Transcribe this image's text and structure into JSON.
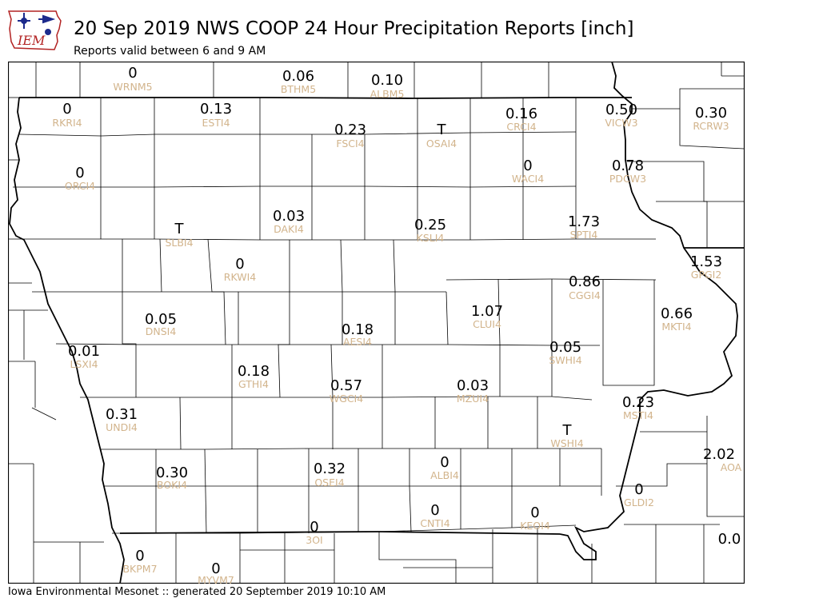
{
  "title": "20 Sep 2019 NWS COOP 24 Hour Precipitation Reports [inch]",
  "subtitle": "Reports valid between 6 and 9 AM",
  "footer": "Iowa Environmental Mesonet :: generated 20 September 2019 10:10 AM",
  "logo_text": "IEM",
  "colors": {
    "value": "#000000",
    "station_id": "#d2b48c",
    "county_lines": "#000000",
    "logo_red": "#b22222",
    "logo_blue": "#1c2a8c"
  },
  "stations": [
    {
      "value": "0",
      "id": "WRNM5"
    },
    {
      "value": "0.06",
      "id": "BTHM5"
    },
    {
      "value": "0.10",
      "id": "ALBM5"
    },
    {
      "value": "0",
      "id": "RKRI4"
    },
    {
      "value": "0.13",
      "id": "ESTI4"
    },
    {
      "value": "0.23",
      "id": "FSCI4"
    },
    {
      "value": "T",
      "id": "OSAI4"
    },
    {
      "value": "0.16",
      "id": "CRCI4"
    },
    {
      "value": "0.50",
      "id": "VICW3"
    },
    {
      "value": "0.30",
      "id": "RCRW3"
    },
    {
      "value": "0",
      "id": "ORCI4"
    },
    {
      "value": "0",
      "id": "WACI4"
    },
    {
      "value": "0.78",
      "id": "PDCW3"
    },
    {
      "value": "T",
      "id": "SLBI4"
    },
    {
      "value": "0.03",
      "id": "DAKI4"
    },
    {
      "value": "0.25",
      "id": "KSLI4"
    },
    {
      "value": "1.73",
      "id": "SPTI4"
    },
    {
      "value": "0",
      "id": "RKWI4"
    },
    {
      "value": "1.53",
      "id": "GPGI2"
    },
    {
      "value": "0.86",
      "id": "CGGI4"
    },
    {
      "value": "1.07",
      "id": "CLUI4"
    },
    {
      "value": "0.05",
      "id": "DNSI4"
    },
    {
      "value": "0.18",
      "id": "AESI4"
    },
    {
      "value": "0.66",
      "id": "MKTI4"
    },
    {
      "value": "0.01",
      "id": "LSXI4"
    },
    {
      "value": "0.05",
      "id": "SWHI4"
    },
    {
      "value": "0.18",
      "id": "GTHI4"
    },
    {
      "value": "0.57",
      "id": "WGCI4"
    },
    {
      "value": "0.03",
      "id": "MZUI4"
    },
    {
      "value": "0.23",
      "id": "MSTI4"
    },
    {
      "value": "0.31",
      "id": "UNDI4"
    },
    {
      "value": "T",
      "id": "WSHI4"
    },
    {
      "value": "2.02",
      "id": "AOA"
    },
    {
      "value": "0.30",
      "id": "BOKI4"
    },
    {
      "value": "0.32",
      "id": "OSEI4"
    },
    {
      "value": "0",
      "id": "ALBI4"
    },
    {
      "value": "0",
      "id": "GLDI2"
    },
    {
      "value": "0",
      "id": "CNTI4"
    },
    {
      "value": "0",
      "id": "KEOI4"
    },
    {
      "value": "0",
      "id": "3OI"
    },
    {
      "value": "0.0",
      "id": ""
    },
    {
      "value": "0",
      "id": "BKPM7"
    },
    {
      "value": "0",
      "id": "MYVM7"
    }
  ]
}
